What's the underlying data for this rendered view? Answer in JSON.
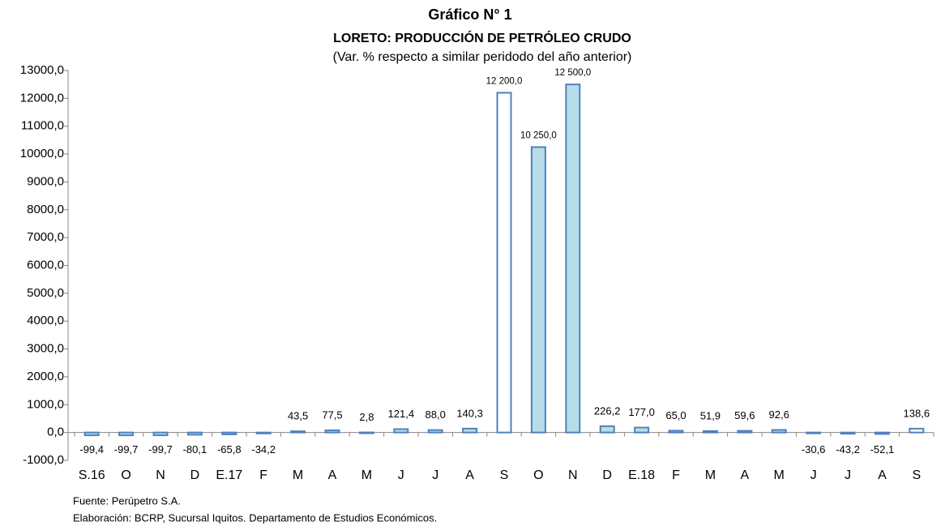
{
  "chart_data": {
    "type": "bar",
    "title": "Gráfico N° 1",
    "subtitle": "LORETO: PRODUCCIÓN DE PETRÓLEO CRUDO",
    "subtitle2": "(Var. % respecto a similar peridodo del año anterior)",
    "categories": [
      "S.16",
      "O",
      "N",
      "D",
      "E.17",
      "F",
      "M",
      "A",
      "M",
      "J",
      "J",
      "A",
      "S",
      "O",
      "N",
      "D",
      "E.18",
      "F",
      "M",
      "A",
      "M",
      "J",
      "J",
      "A",
      "S"
    ],
    "values": [
      -99.4,
      -99.7,
      -99.7,
      -80.1,
      -65.8,
      -34.2,
      43.5,
      77.5,
      2.8,
      121.4,
      88.0,
      140.3,
      12200,
      10250,
      12500,
      226.2,
      177.0,
      65.0,
      51.9,
      59.6,
      92.6,
      -30.6,
      -43.2,
      -52.1,
      138.6
    ],
    "value_labels": [
      "-99,4",
      "-99,7",
      "-99,7",
      "-80,1",
      "-65,8",
      "-34,2",
      "43,5",
      "77,5",
      "2,8",
      "121,4",
      "88,0",
      "140,3",
      "12 200,0",
      "10 250,0",
      "12 500,0",
      "226,2",
      "177,0",
      "65,0",
      "51,9",
      "59,6",
      "92,6",
      "-30,6",
      "-43,2",
      "-52,1",
      "138,6"
    ],
    "colors": [
      "#b7dde8",
      "#b7dde8",
      "#b7dde8",
      "#b7dde8",
      "#b7dde8",
      "#b7dde8",
      "#b7dde8",
      "#b7dde8",
      "#b7dde8",
      "#b7dde8",
      "#b7dde8",
      "#b7dde8",
      "#ffffff",
      "#b7dde8",
      "#b7dde8",
      "#b7dde8",
      "#b7dde8",
      "#b7dde8",
      "#b7dde8",
      "#b7dde8",
      "#b7dde8",
      "#b7dde8",
      "#b7dde8",
      "#b7dde8",
      "#ffffff"
    ],
    "border_color": "#4f81bd",
    "ylim": [
      -1000,
      13000
    ],
    "yticks": [
      {
        "value": -1000,
        "label": "-1000,0"
      },
      {
        "value": 0,
        "label": "0,0"
      },
      {
        "value": 1000,
        "label": "1000,0"
      },
      {
        "value": 2000,
        "label": "2000,0"
      },
      {
        "value": 3000,
        "label": "3000,0"
      },
      {
        "value": 4000,
        "label": "4000,0"
      },
      {
        "value": 5000,
        "label": "5000,0"
      },
      {
        "value": 6000,
        "label": "6000,0"
      },
      {
        "value": 7000,
        "label": "7000,0"
      },
      {
        "value": 8000,
        "label": "8000,0"
      },
      {
        "value": 9000,
        "label": "9000,0"
      },
      {
        "value": 10000,
        "label": "10000,0"
      },
      {
        "value": 11000,
        "label": "11000,0"
      },
      {
        "value": 12000,
        "label": "12000,0"
      },
      {
        "value": 13000,
        "label": "13000,0"
      }
    ],
    "grid": false,
    "source": "Fuente: Perúpetro S.A.",
    "note": "Elaboración: BCRP, Sucursal Iquitos. Departamento de Estudios Económicos."
  }
}
